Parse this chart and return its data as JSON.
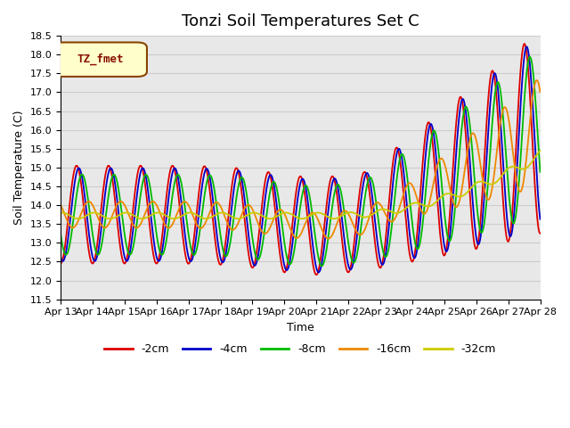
{
  "title": "Tonzi Soil Temperatures Set C",
  "xlabel": "Time",
  "ylabel": "Soil Temperature (C)",
  "ylim": [
    11.5,
    18.5
  ],
  "legend_label": "TZ_fmet",
  "series_labels": [
    "-2cm",
    "-4cm",
    "-8cm",
    "-16cm",
    "-32cm"
  ],
  "series_colors": [
    "#dd0000",
    "#0000cc",
    "#00bb00",
    "#ee8800",
    "#cccc00"
  ],
  "grid_color": "#cccccc",
  "bg_color": "#e8e8e8",
  "xtick_labels": [
    "Apr 13",
    "Apr 14",
    "Apr 15",
    "Apr 16",
    "Apr 17",
    "Apr 18",
    "Apr 19",
    "Apr 20",
    "Apr 21",
    "Apr 22",
    "Apr 23",
    "Apr 24",
    "Apr 25",
    "Apr 26",
    "Apr 27",
    "Apr 28"
  ],
  "n_days": 15,
  "n_points": 1800
}
